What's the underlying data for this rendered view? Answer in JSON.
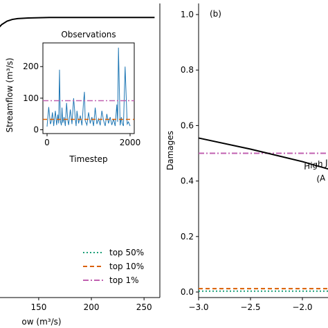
{
  "chart_data": [
    {
      "panel": "left",
      "type": "line",
      "xlabel": "ow (m³/s)",
      "x_ticks": [
        150,
        200,
        250
      ],
      "xlim": [
        110,
        265
      ],
      "ylim": [
        0,
        1.05
      ],
      "curve": {
        "name": "",
        "x": [
          110,
          115,
          120,
          125,
          130,
          140,
          150,
          160,
          180,
          200,
          220,
          240,
          260
        ],
        "y": [
          0.955,
          0.975,
          0.987,
          0.993,
          0.996,
          0.998,
          0.999,
          1.0,
          1.0,
          1.0,
          1.0,
          1.0,
          1.0
        ]
      },
      "legend": {
        "placement": "lower-right",
        "entries": [
          {
            "label": "top 50%",
            "color": "#1a9e77",
            "style": "dotted"
          },
          {
            "label": "top 10%",
            "color": "#d95f02",
            "style": "dashed"
          },
          {
            "label": "top 1%",
            "color": "#c060b0",
            "style": "dashdot"
          }
        ]
      },
      "inset": {
        "type": "line",
        "title": "Observations",
        "xlabel": "Timestep",
        "ylabel": "Streamflow (m³/s)",
        "x_ticks": [
          0,
          2000
        ],
        "y_ticks": [
          0,
          100,
          200
        ],
        "xlim": [
          -100,
          2100
        ],
        "ylim": [
          -12,
          275
        ],
        "thresholds": [
          {
            "value": 33,
            "color": "#d95f02",
            "style": "dashed"
          },
          {
            "value": 92,
            "color": "#c060b0",
            "style": "dashdot"
          }
        ],
        "series_color": "#1f77b4",
        "x": [
          0,
          40,
          80,
          100,
          130,
          160,
          200,
          230,
          260,
          280,
          300,
          320,
          345,
          360,
          380,
          410,
          440,
          470,
          500,
          520,
          560,
          600,
          640,
          680,
          700,
          720,
          760,
          800,
          840,
          880,
          900,
          920,
          960,
          1000,
          1040,
          1080,
          1120,
          1160,
          1200,
          1240,
          1280,
          1320,
          1360,
          1400,
          1440,
          1480,
          1520,
          1560,
          1600,
          1640,
          1680,
          1700,
          1720,
          1760,
          1790,
          1810,
          1840,
          1880,
          1910,
          1930,
          1960,
          2000
        ],
        "y": [
          10,
          72,
          18,
          25,
          55,
          12,
          60,
          15,
          48,
          20,
          190,
          28,
          14,
          70,
          22,
          40,
          12,
          85,
          30,
          15,
          64,
          18,
          100,
          35,
          12,
          60,
          20,
          45,
          14,
          90,
          120,
          28,
          15,
          55,
          20,
          40,
          12,
          70,
          18,
          35,
          14,
          60,
          30,
          12,
          50,
          20,
          40,
          15,
          34,
          12,
          80,
          25,
          260,
          14,
          40,
          20,
          12,
          200,
          90,
          18,
          25,
          12
        ]
      }
    },
    {
      "panel": "right",
      "type": "line",
      "panel_label": "(b)",
      "ylabel": "Damages",
      "y_ticks": [
        0.0,
        0.2,
        0.4,
        0.6,
        0.8,
        1.0
      ],
      "x_ticks": [
        -3.0,
        -2.5,
        -2.0
      ],
      "xlim": [
        -3.0,
        -1.72
      ],
      "ylim": [
        -0.02,
        1.04
      ],
      "curve": {
        "name": "",
        "x": [
          -3.0,
          -2.5,
          -2.0,
          -1.72
        ],
        "y": [
          0.555,
          0.515,
          0.47,
          0.44
        ]
      },
      "hlines": [
        {
          "value": 0.5,
          "color": "#c060b0",
          "style": "dashdot"
        },
        {
          "value": 0.012,
          "color": "#d95f02",
          "style": "dashed"
        },
        {
          "value": 0.003,
          "color": "#1a9e77",
          "style": "dotted"
        }
      ],
      "annotation": [
        "High J",
        "(A"
      ]
    }
  ]
}
